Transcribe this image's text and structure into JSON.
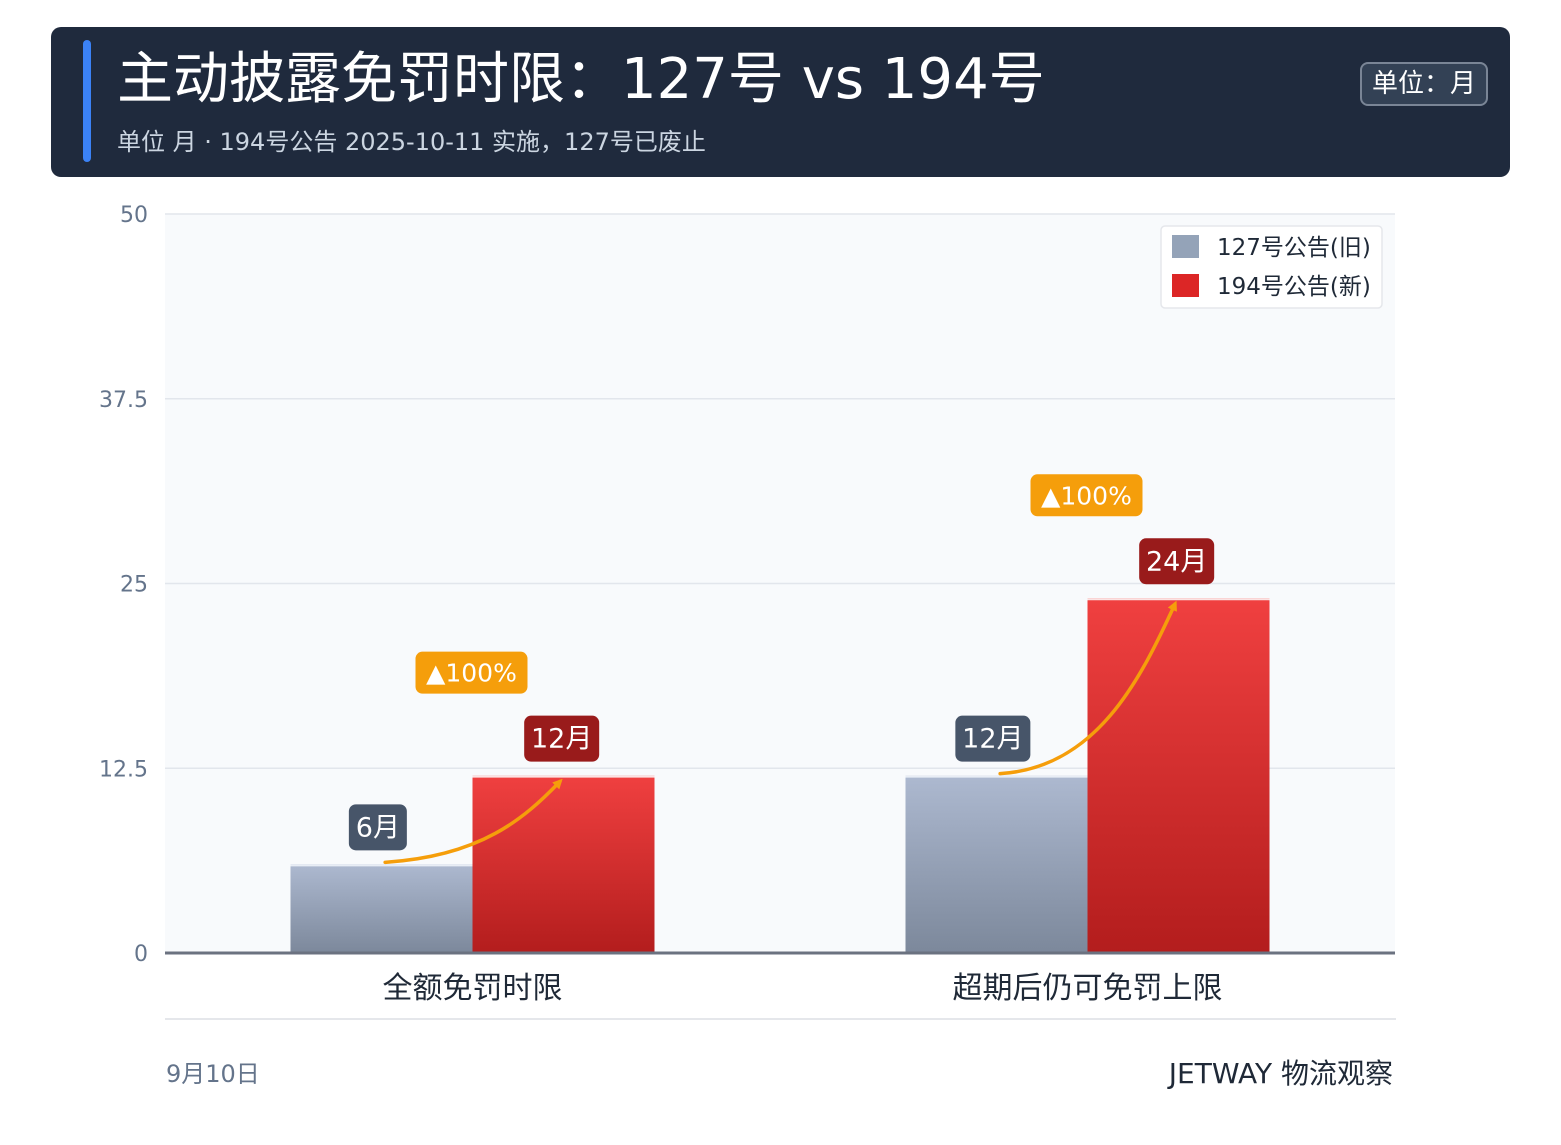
{
  "header": {
    "title": "主动披露免罚时限：127号 vs 194号",
    "subtitle": "单位 月 · 194号公告 2025-10-11 实施，127号已废止",
    "unit_badge": "单位：月"
  },
  "chart_data": {
    "type": "bar",
    "categories": [
      "全额免罚时限",
      "超期后仍可免罚上限"
    ],
    "series": [
      {
        "name": "127号公告(旧)",
        "values": [
          6,
          12
        ],
        "value_labels": [
          "6月",
          "12月"
        ],
        "color": "#94a3b8"
      },
      {
        "name": "194号公告(新)",
        "values": [
          12,
          24
        ],
        "value_labels": [
          "12月",
          "24月"
        ],
        "color": "#dc2626"
      }
    ],
    "change_labels": [
      "▲100%",
      "▲100%"
    ],
    "y_ticks": [
      "0",
      "12.5",
      "25",
      "37.5",
      "50"
    ],
    "ylim": [
      0,
      50
    ],
    "xlabel": "",
    "ylabel": "",
    "grid": true,
    "legend_position": "top-right"
  },
  "footer": {
    "date": "9月10日",
    "brand": "JETWAY 物流观察"
  }
}
